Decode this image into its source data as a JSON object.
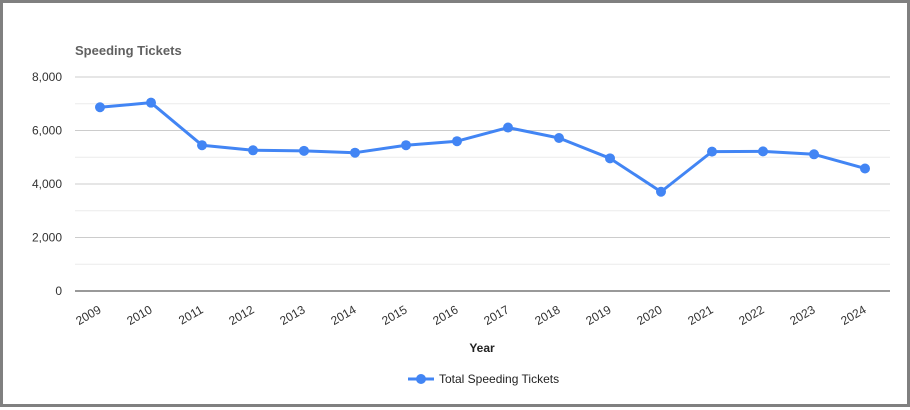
{
  "chart_data": {
    "type": "line",
    "title": "Speeding Tickets",
    "xlabel": "Year",
    "ylabel": "",
    "categories": [
      "2009",
      "2010",
      "2011",
      "2012",
      "2013",
      "2014",
      "2015",
      "2016",
      "2017",
      "2018",
      "2019",
      "2020",
      "2021",
      "2022",
      "2023",
      "2024"
    ],
    "series": [
      {
        "name": "Total Speeding Tickets",
        "color": "#4285f4",
        "values": [
          6870,
          7040,
          5450,
          5260,
          5240,
          5170,
          5450,
          5600,
          6110,
          5720,
          4960,
          3710,
          5210,
          5220,
          5110,
          4580
        ]
      }
    ],
    "ylim": [
      0,
      8000
    ],
    "yticks": [
      "0",
      "2,000",
      "4,000",
      "6,000",
      "8,000"
    ],
    "ytick_values": [
      0,
      2000,
      4000,
      6000,
      8000
    ],
    "grid": true,
    "legend_position": "bottom"
  }
}
